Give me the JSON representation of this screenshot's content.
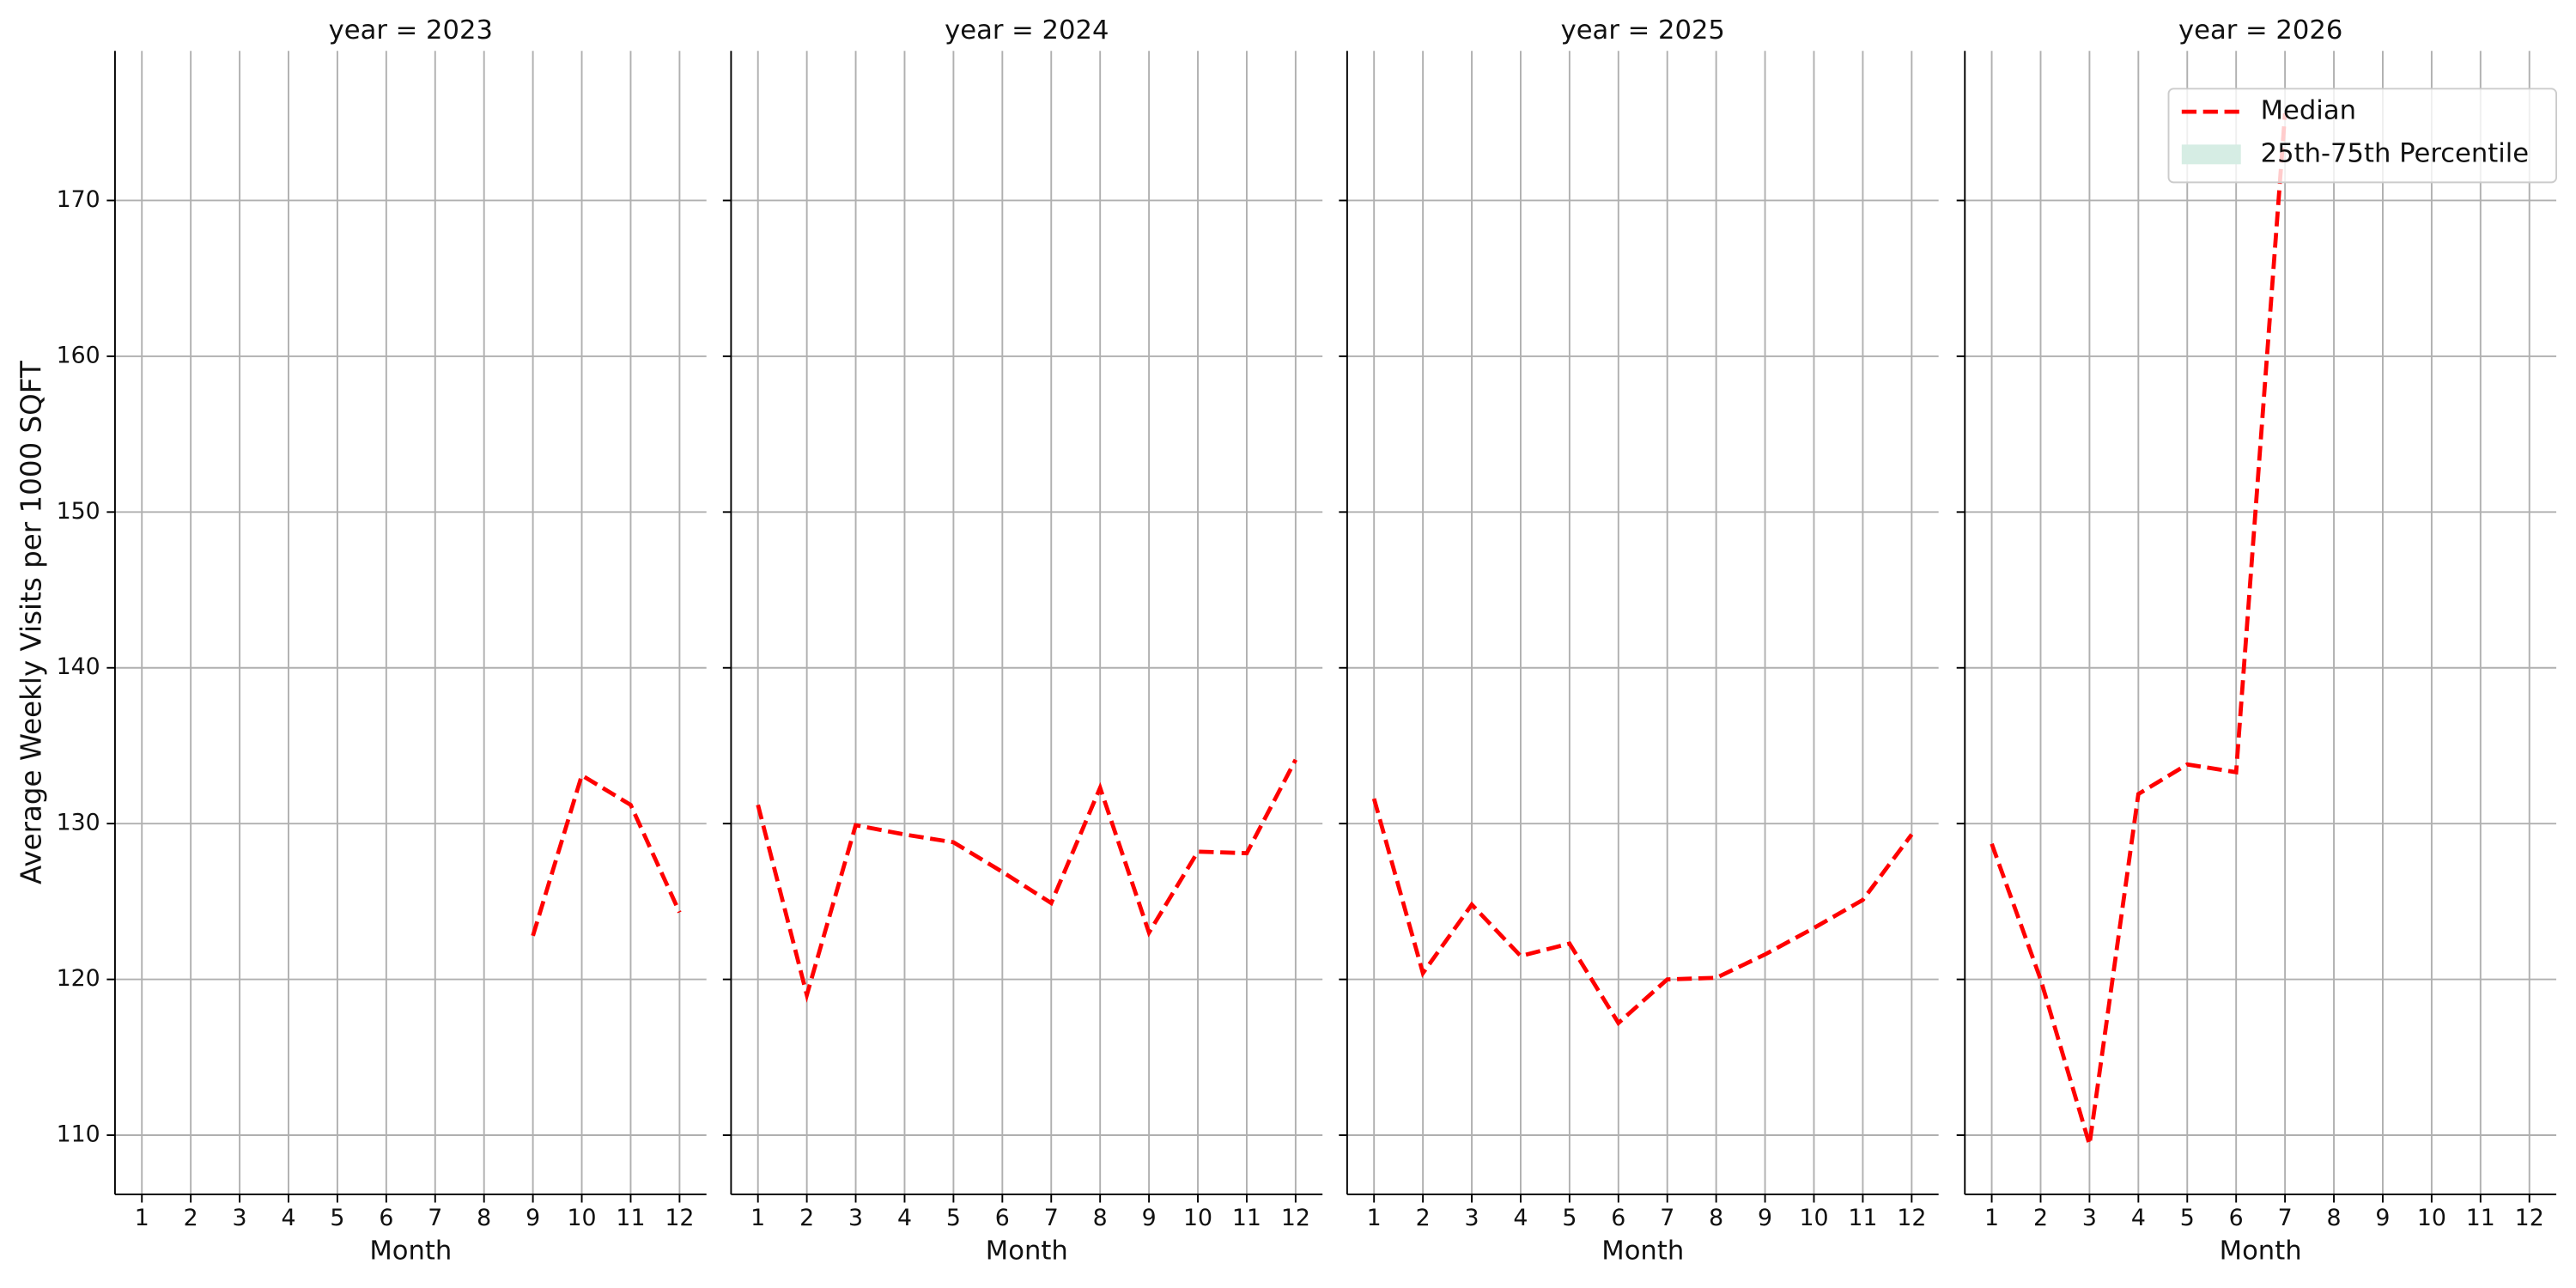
{
  "chart_data": [
    {
      "type": "line",
      "title": "year = 2023",
      "xlabel": "Month",
      "ylabel": "Average Weekly Visits per 1000 SQFT",
      "x": [
        1,
        2,
        3,
        4,
        5,
        6,
        7,
        8,
        9,
        10,
        11,
        12
      ],
      "series": [
        {
          "name": "Median",
          "color": "#ff0000",
          "values": [
            null,
            null,
            null,
            null,
            null,
            null,
            null,
            null,
            122.8,
            133.1,
            131.2,
            124.3
          ]
        }
      ],
      "xlim": [
        0.45,
        12.55
      ],
      "ylim": [
        106.2,
        179.6
      ],
      "xticks": [
        1,
        2,
        3,
        4,
        5,
        6,
        7,
        8,
        9,
        10,
        11,
        12
      ],
      "yticks": [
        110,
        120,
        130,
        140,
        150,
        160,
        170
      ],
      "grid": true,
      "show_ytick_labels": true
    },
    {
      "type": "line",
      "title": "year = 2024",
      "xlabel": "Month",
      "x": [
        1,
        2,
        3,
        4,
        5,
        6,
        7,
        8,
        9,
        10,
        11,
        12
      ],
      "series": [
        {
          "name": "Median",
          "color": "#ff0000",
          "values": [
            131.2,
            119.0,
            129.9,
            129.3,
            128.8,
            126.9,
            124.9,
            132.3,
            123.0,
            128.2,
            128.1,
            134.1
          ]
        }
      ],
      "xlim": [
        0.45,
        12.55
      ],
      "ylim": [
        106.2,
        179.6
      ],
      "xticks": [
        1,
        2,
        3,
        4,
        5,
        6,
        7,
        8,
        9,
        10,
        11,
        12
      ],
      "yticks": [
        110,
        120,
        130,
        140,
        150,
        160,
        170
      ],
      "grid": true,
      "show_ytick_labels": false
    },
    {
      "type": "line",
      "title": "year = 2025",
      "xlabel": "Month",
      "x": [
        1,
        2,
        3,
        4,
        5,
        6,
        7,
        8,
        9,
        10,
        11,
        12
      ],
      "series": [
        {
          "name": "Median",
          "color": "#ff0000",
          "values": [
            131.6,
            120.4,
            124.8,
            121.5,
            122.3,
            117.2,
            120.0,
            120.1,
            121.6,
            123.3,
            125.1,
            129.3
          ]
        }
      ],
      "xlim": [
        0.45,
        12.55
      ],
      "ylim": [
        106.2,
        179.6
      ],
      "xticks": [
        1,
        2,
        3,
        4,
        5,
        6,
        7,
        8,
        9,
        10,
        11,
        12
      ],
      "yticks": [
        110,
        120,
        130,
        140,
        150,
        160,
        170
      ],
      "grid": true,
      "show_ytick_labels": false
    },
    {
      "type": "line",
      "title": "year = 2026",
      "xlabel": "Month",
      "x": [
        1,
        2,
        3,
        4,
        5,
        6,
        7,
        8,
        9,
        10,
        11,
        12
      ],
      "series": [
        {
          "name": "Median",
          "color": "#ff0000",
          "values": [
            128.7,
            120.0,
            109.4,
            131.9,
            133.8,
            133.3,
            175.6,
            null,
            null,
            null,
            null,
            null
          ]
        }
      ],
      "legend_patches": [
        {
          "name": "25th-75th Percentile",
          "color": "#d6ede4"
        }
      ],
      "legend": "upper right",
      "xlim": [
        0.45,
        12.55
      ],
      "ylim": [
        106.2,
        179.6
      ],
      "xticks": [
        1,
        2,
        3,
        4,
        5,
        6,
        7,
        8,
        9,
        10,
        11,
        12
      ],
      "yticks": [
        110,
        120,
        130,
        140,
        150,
        160,
        170
      ],
      "grid": true,
      "show_ytick_labels": false
    }
  ]
}
